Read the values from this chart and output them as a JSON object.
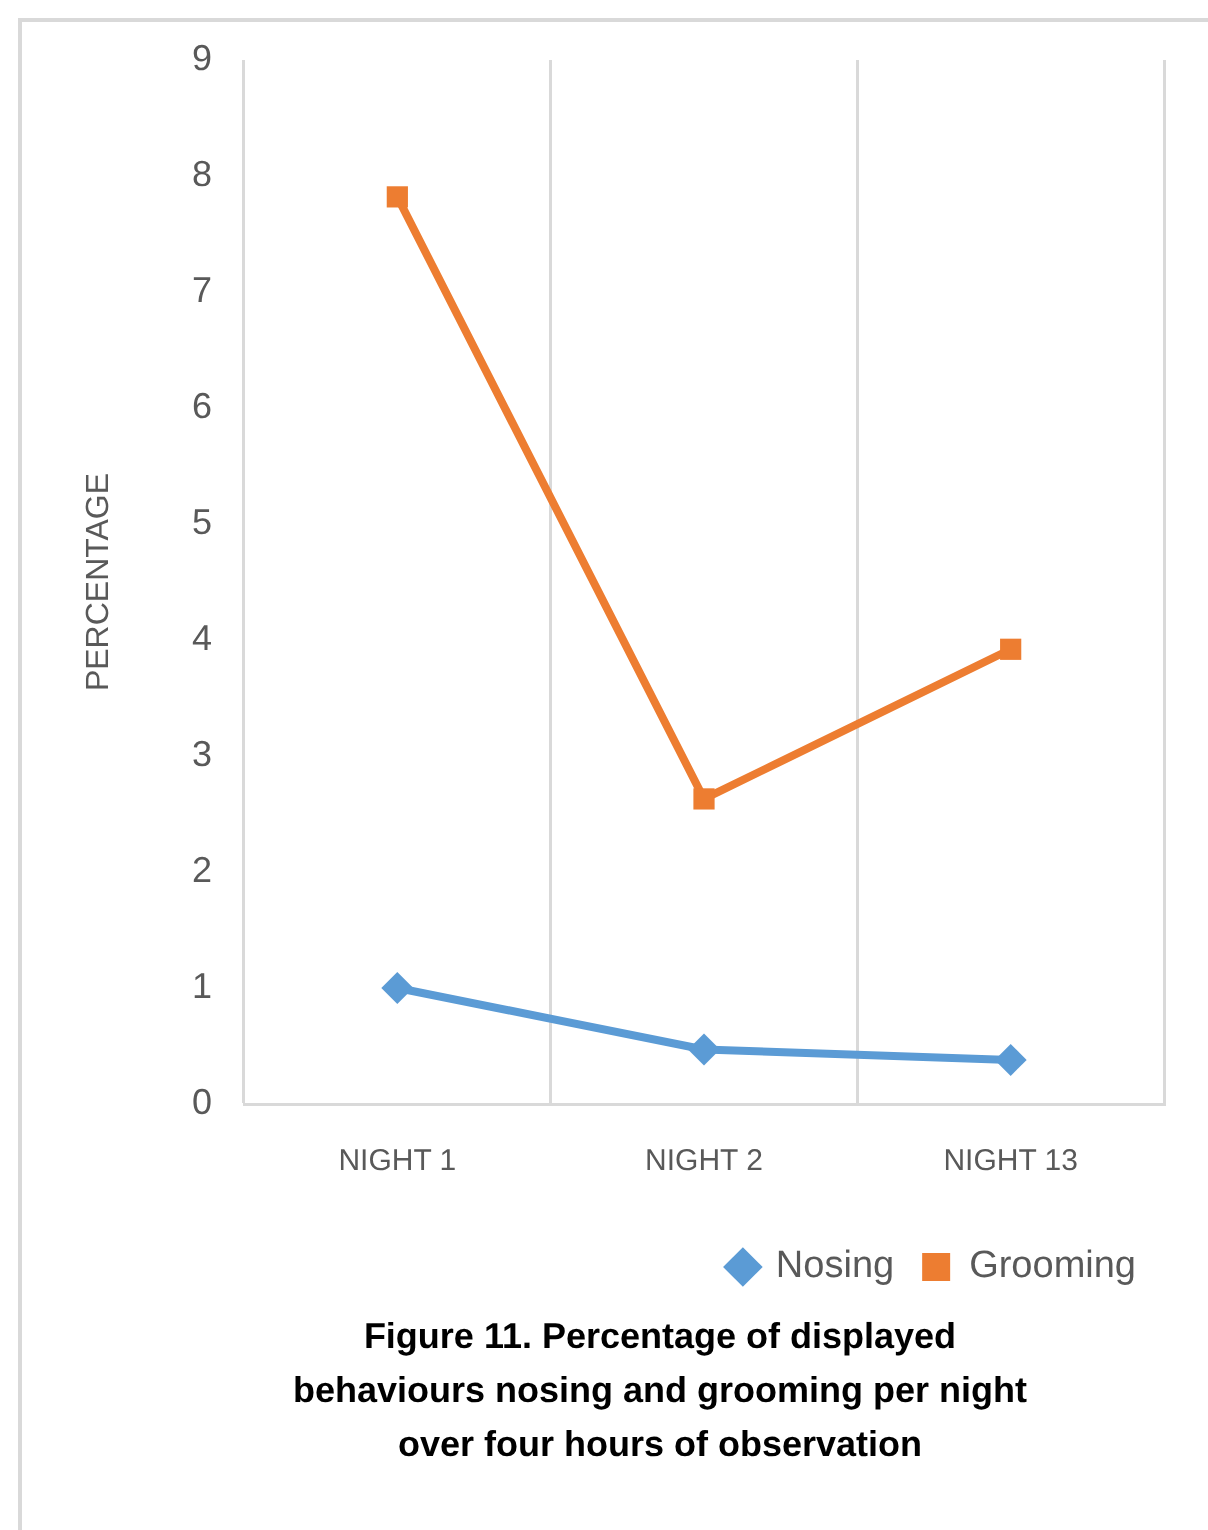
{
  "chart_data": {
    "type": "line",
    "title": "Figure 11. Percentage of displayed behaviours nosing and grooming per night over four hours of observation",
    "ylabel": "PERCENTAGE",
    "categories": [
      "NIGHT 1",
      "NIGHT 2",
      "NIGHT 13"
    ],
    "series": [
      {
        "name": "Nosing",
        "color": "#5b9bd5",
        "marker": "diamond",
        "values": [
          1.0,
          0.47,
          0.38
        ]
      },
      {
        "name": "Grooming",
        "color": "#ed7d31",
        "marker": "square",
        "values": [
          7.82,
          2.63,
          3.92
        ]
      }
    ],
    "ylim": [
      0,
      9
    ],
    "yticks": [
      0,
      1,
      2,
      3,
      4,
      5,
      6,
      7,
      8,
      9
    ],
    "grid": "x",
    "legend": "bottom",
    "line_style": "solid"
  }
}
